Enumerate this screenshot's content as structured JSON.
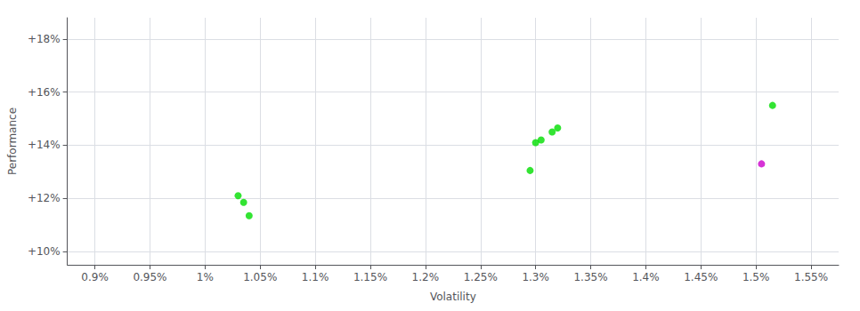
{
  "chart_data": {
    "type": "scatter",
    "xlabel": "Volatility",
    "ylabel": "Performance",
    "series": [
      {
        "color": "#00dd00",
        "x": [
          1.03,
          1.035,
          1.04,
          1.295,
          1.3,
          1.305,
          1.315,
          1.32,
          1.515
        ],
        "values": [
          12.1,
          11.85,
          11.35,
          13.05,
          14.1,
          14.2,
          14.5,
          14.65,
          15.5
        ]
      },
      {
        "color": "#cc00cc",
        "x": [
          1.505
        ],
        "values": [
          13.3
        ]
      }
    ],
    "xlim": [
      0.875,
      1.575
    ],
    "xticks": [
      {
        "value": 0.9,
        "label": "0.9%"
      },
      {
        "value": 0.95,
        "label": "0.95%"
      },
      {
        "value": 1.0,
        "label": "1%"
      },
      {
        "value": 1.05,
        "label": "1.05%"
      },
      {
        "value": 1.1,
        "label": "1.1%"
      },
      {
        "value": 1.15,
        "label": "1.15%"
      },
      {
        "value": 1.2,
        "label": "1.2%"
      },
      {
        "value": 1.25,
        "label": "1.25%"
      },
      {
        "value": 1.3,
        "label": "1.3%"
      },
      {
        "value": 1.35,
        "label": "1.35%"
      },
      {
        "value": 1.4,
        "label": "1.4%"
      },
      {
        "value": 1.45,
        "label": "1.45%"
      },
      {
        "value": 1.5,
        "label": "1.5%"
      },
      {
        "value": 1.55,
        "label": "1.55%"
      }
    ],
    "ylim": [
      9.5,
      18.8
    ],
    "yticks": [
      {
        "value": 10,
        "label": "+10%"
      },
      {
        "value": 12,
        "label": "+12%"
      },
      {
        "value": 14,
        "label": "+14%"
      },
      {
        "value": 16,
        "label": "+16%"
      },
      {
        "value": 18,
        "label": "+18%"
      }
    ],
    "grid": true
  }
}
